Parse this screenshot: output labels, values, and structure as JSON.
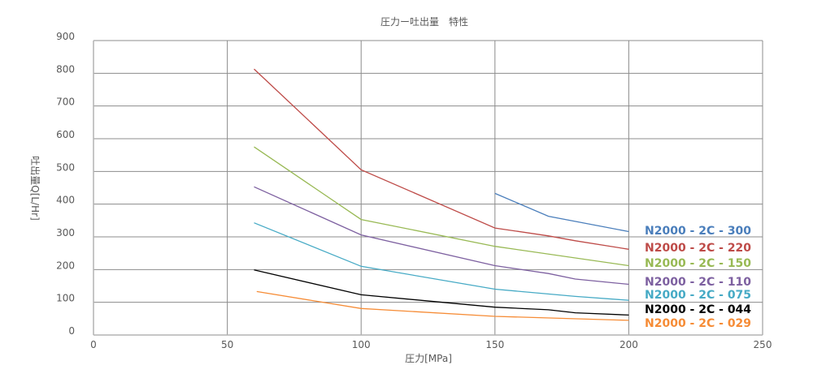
{
  "chart_data": {
    "type": "line",
    "title": "圧力ー吐出量　特性",
    "xlabel": "圧力[MPa]",
    "ylabel": "吐出量Q[L/Hr]",
    "xlim": [
      0,
      250
    ],
    "ylim": [
      0,
      900
    ],
    "x_ticks": [
      0,
      50,
      100,
      150,
      200,
      250
    ],
    "y_ticks": [
      0,
      100,
      200,
      300,
      400,
      500,
      600,
      700,
      800,
      900
    ],
    "grid": true,
    "legend_position": "right-inside",
    "series": [
      {
        "name": "N2000-2C-300",
        "label": "N2000 - 2C - 300",
        "color": "#4a7ebb",
        "x": [
          150,
          170,
          200
        ],
        "y": [
          433,
          363,
          316
        ]
      },
      {
        "name": "N2000-2C-220",
        "label": "N2000 - 2C - 220",
        "color": "#be4b48",
        "x": [
          60,
          100,
          150,
          170,
          180,
          200
        ],
        "y": [
          813,
          505,
          327,
          303,
          288,
          262
        ]
      },
      {
        "name": "N2000-2C-150",
        "label": "N2000 - 2C - 150",
        "color": "#98b954",
        "x": [
          60,
          100,
          150,
          200
        ],
        "y": [
          575,
          353,
          271,
          212
        ]
      },
      {
        "name": "N2000-2C-110",
        "label": "N2000 - 2C - 110",
        "color": "#7d60a0",
        "x": [
          60,
          100,
          150,
          170,
          180,
          200
        ],
        "y": [
          453,
          306,
          212,
          188,
          171,
          155
        ]
      },
      {
        "name": "N2000-2C-075",
        "label": "N2000 - 2C - 075",
        "color": "#46aac5",
        "x": [
          60,
          100,
          150,
          180,
          200
        ],
        "y": [
          343,
          210,
          140,
          118,
          106
        ]
      },
      {
        "name": "N2000-2C-044",
        "label": "N2000 - 2C - 044",
        "color": "#000000",
        "x": [
          60,
          100,
          150,
          170,
          180,
          200
        ],
        "y": [
          199,
          123,
          85,
          77,
          68,
          61
        ]
      },
      {
        "name": "N2000-2C-029",
        "label": "N2000 - 2C - 029",
        "color": "#f68c36",
        "x": [
          61,
          100,
          150,
          200
        ],
        "y": [
          133,
          81,
          57,
          45
        ]
      }
    ]
  }
}
